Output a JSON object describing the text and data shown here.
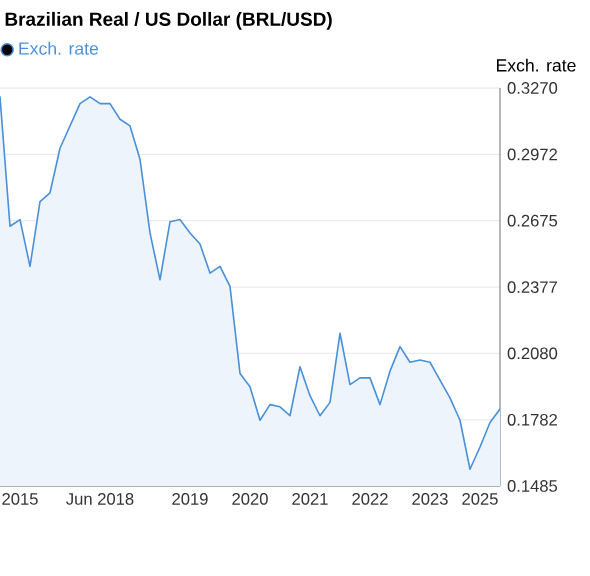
{
  "chart_data": {
    "type": "area",
    "title": "Brazilian Real / US Dollar (BRL/USD)",
    "ylabel": "Exch. rate",
    "categories": [
      null,
      null,
      "2015",
      null,
      null,
      null,
      null,
      null,
      null,
      null,
      "Jun 2018",
      null,
      null,
      null,
      null,
      null,
      null,
      null,
      null,
      "2019",
      null,
      null,
      null,
      null,
      null,
      "2020",
      null,
      null,
      null,
      null,
      null,
      "2021",
      null,
      null,
      null,
      null,
      null,
      "2022",
      null,
      null,
      null,
      null,
      null,
      "2023",
      null,
      null,
      null,
      null,
      "2025",
      null,
      null
    ],
    "series": [
      {
        "name": "Exch. rate",
        "color": "#4a90d9",
        "values": [
          0.323,
          0.265,
          0.268,
          0.247,
          0.276,
          0.28,
          0.3,
          0.31,
          0.32,
          0.323,
          0.32,
          0.32,
          0.313,
          0.31,
          0.295,
          0.262,
          0.241,
          0.267,
          0.268,
          0.262,
          0.257,
          0.244,
          0.247,
          0.238,
          0.199,
          0.193,
          0.178,
          0.185,
          0.184,
          0.18,
          0.202,
          0.189,
          0.18,
          0.186,
          0.217,
          0.194,
          0.197,
          0.197,
          0.185,
          0.2,
          0.211,
          0.204,
          0.205,
          0.204,
          0.196,
          0.188,
          0.178,
          0.156,
          0.166,
          0.177,
          0.183
        ]
      }
    ],
    "ylim": [
      0.1485,
      0.327
    ],
    "yticks": [
      {
        "value": 0.1485,
        "label": "0.1485"
      },
      {
        "value": 0.1782,
        "label": "0.1782"
      },
      {
        "value": 0.208,
        "label": "0.2080"
      },
      {
        "value": 0.2377,
        "label": "0.2377"
      },
      {
        "value": 0.2675,
        "label": "0.2675"
      },
      {
        "value": 0.2972,
        "label": "0.2972"
      },
      {
        "value": 0.327,
        "label": "0.3270"
      }
    ],
    "grid": "y",
    "legend": "top left",
    "marker": "none"
  }
}
